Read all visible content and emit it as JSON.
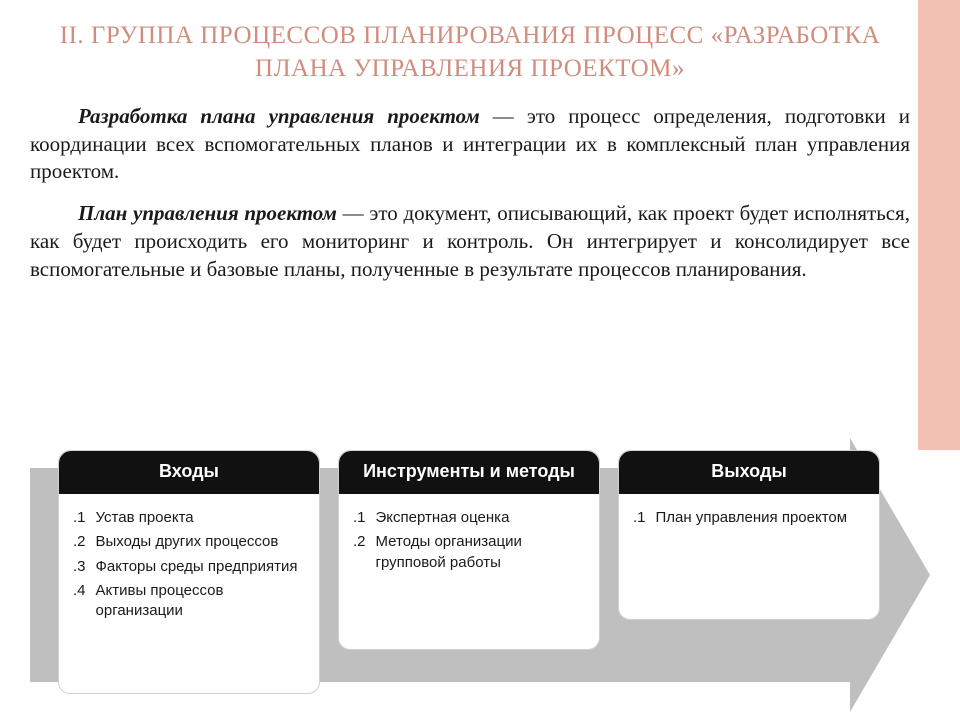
{
  "colors": {
    "accent": "#f3c2b5",
    "title": "#d08d7e",
    "text": "#1a1a1a",
    "arrow": "#bfbfbf",
    "box_header_bg": "#111111",
    "box_header_text": "#ffffff",
    "box_bg": "#ffffff",
    "box_border": "#d0d0d0"
  },
  "title": "II. ГРУППА ПРОЦЕССОВ ПЛАНИРОВАНИЯ ПРОЦЕСС «РАЗРАБОТКА ПЛАНА УПРАВЛЕНИЯ ПРОЕКТОМ»",
  "para1_lead": "Разработка плана управления проектом",
  "para1_rest": " — это процесс определения, подготовки и координации всех вспомогательных планов и интеграции их в комплексный план управления проектом.",
  "para2_lead": "План управления проектом",
  "para2_rest": " — это документ, описывающий, как проект будет исполняться, как будет происходить его мониторинг и контроль. Он интегрирует и консолидирует все вспомогательные и базовые планы, полученные в результате процессов планирования.",
  "diagram": {
    "type": "process-arrow",
    "boxes": [
      {
        "header": "Входы",
        "items": [
          {
            "n": ".1",
            "t": "Устав проекта"
          },
          {
            "n": ".2",
            "t": "Выходы других процессов"
          },
          {
            "n": ".3",
            "t": "Факторы среды предприятия"
          },
          {
            "n": ".4",
            "t": "Активы процессов организации"
          }
        ]
      },
      {
        "header": "Инструменты и методы",
        "items": [
          {
            "n": ".1",
            "t": "Экспертная оценка"
          },
          {
            "n": ".2",
            "t": "Методы организации групповой работы"
          }
        ]
      },
      {
        "header": "Выходы",
        "items": [
          {
            "n": ".1",
            "t": "План управления проектом"
          }
        ]
      }
    ]
  }
}
